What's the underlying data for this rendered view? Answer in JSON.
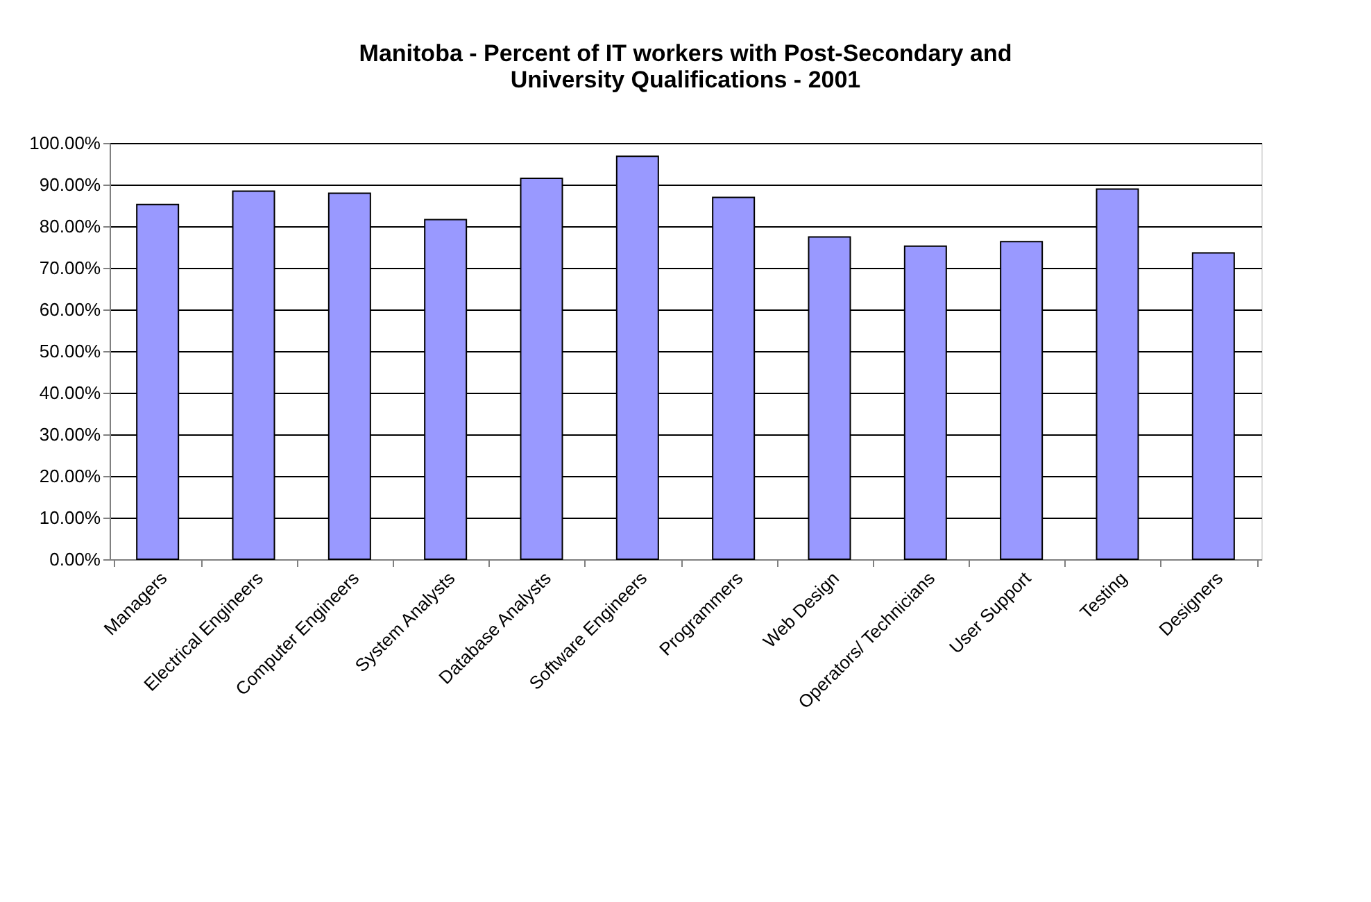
{
  "chart_data": {
    "type": "bar",
    "title": [
      "Manitoba - Percent of IT workers with Post-Secondary and",
      "University Qualifications - 2001"
    ],
    "categories": [
      "Managers",
      "Electrical Engineers",
      "Computer Engineers",
      "System Analysts",
      "Database Analysts",
      "Software Engineers",
      "Programmers",
      "Web Design",
      "Operators/ Technicians",
      "User Support",
      "Testing",
      "Designers"
    ],
    "values": [
      85.2,
      88.4,
      87.9,
      81.6,
      91.5,
      96.8,
      86.9,
      77.4,
      75.2,
      76.3,
      88.9,
      73.6
    ],
    "color": "#9999ff",
    "ylim": [
      0,
      100
    ],
    "yticks": [
      {
        "value": 0,
        "label": "0.00%"
      },
      {
        "value": 10,
        "label": "10.00%"
      },
      {
        "value": 20,
        "label": "20.00%"
      },
      {
        "value": 30,
        "label": "30.00%"
      },
      {
        "value": 40,
        "label": "40.00%"
      },
      {
        "value": 50,
        "label": "50.00%"
      },
      {
        "value": 60,
        "label": "60.00%"
      },
      {
        "value": 70,
        "label": "70.00%"
      },
      {
        "value": 80,
        "label": "80.00%"
      },
      {
        "value": 90,
        "label": "90.00%"
      },
      {
        "value": 100,
        "label": "100.00%"
      }
    ],
    "grid": "y"
  }
}
